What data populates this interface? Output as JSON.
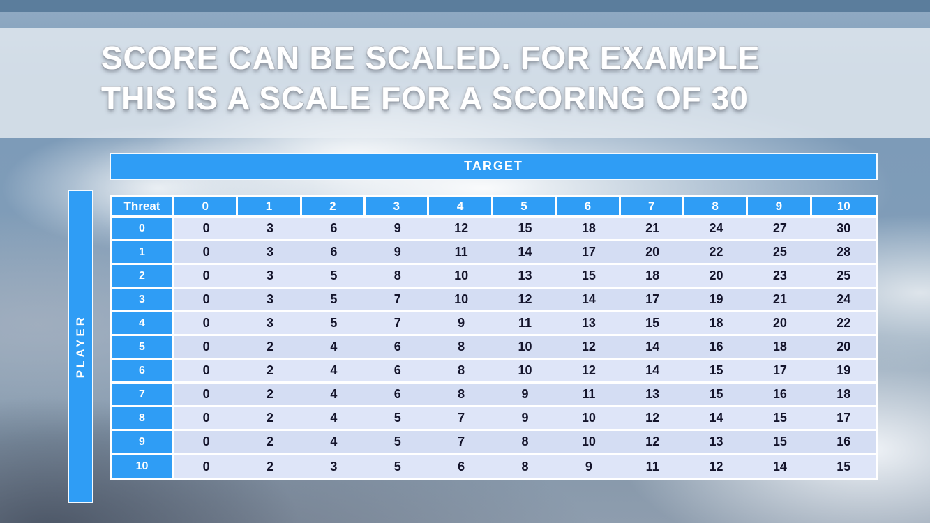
{
  "title": {
    "line1": "SCORE CAN BE SCALED. FOR EXAMPLE",
    "line2": "THIS IS A SCALE FOR A SCORING OF 30"
  },
  "matrix": {
    "target_label": "TARGET",
    "player_label": "PLAYER",
    "corner_label": "Threat",
    "columns": [
      "0",
      "1",
      "2",
      "3",
      "4",
      "5",
      "6",
      "7",
      "8",
      "9",
      "10"
    ],
    "rows": [
      {
        "label": "0",
        "values": [
          0,
          3,
          6,
          9,
          12,
          15,
          18,
          21,
          24,
          27,
          30
        ]
      },
      {
        "label": "1",
        "values": [
          0,
          3,
          6,
          9,
          11,
          14,
          17,
          20,
          22,
          25,
          28
        ]
      },
      {
        "label": "2",
        "values": [
          0,
          3,
          5,
          8,
          10,
          13,
          15,
          18,
          20,
          23,
          25
        ]
      },
      {
        "label": "3",
        "values": [
          0,
          3,
          5,
          7,
          10,
          12,
          14,
          17,
          19,
          21,
          24
        ]
      },
      {
        "label": "4",
        "values": [
          0,
          3,
          5,
          7,
          9,
          11,
          13,
          15,
          18,
          20,
          22
        ]
      },
      {
        "label": "5",
        "values": [
          0,
          2,
          4,
          6,
          8,
          10,
          12,
          14,
          16,
          18,
          20
        ]
      },
      {
        "label": "6",
        "values": [
          0,
          2,
          4,
          6,
          8,
          10,
          12,
          14,
          15,
          17,
          19
        ]
      },
      {
        "label": "7",
        "values": [
          0,
          2,
          4,
          6,
          8,
          9,
          11,
          13,
          15,
          16,
          18
        ]
      },
      {
        "label": "8",
        "values": [
          0,
          2,
          4,
          5,
          7,
          9,
          10,
          12,
          14,
          15,
          17
        ]
      },
      {
        "label": "9",
        "values": [
          0,
          2,
          4,
          5,
          7,
          8,
          10,
          12,
          13,
          15,
          16
        ]
      },
      {
        "label": "10",
        "values": [
          0,
          2,
          3,
          5,
          6,
          8,
          9,
          11,
          12,
          14,
          15
        ]
      }
    ]
  },
  "colors": {
    "accent_blue": "#2F9DF5",
    "cell_bg": "#DEE5F8",
    "cell_bg_alt": "#D4DDF3",
    "cell_text": "#14142B",
    "top_strip": "#5B7D9C",
    "title_band": "rgba(233,238,244,0.78)"
  }
}
